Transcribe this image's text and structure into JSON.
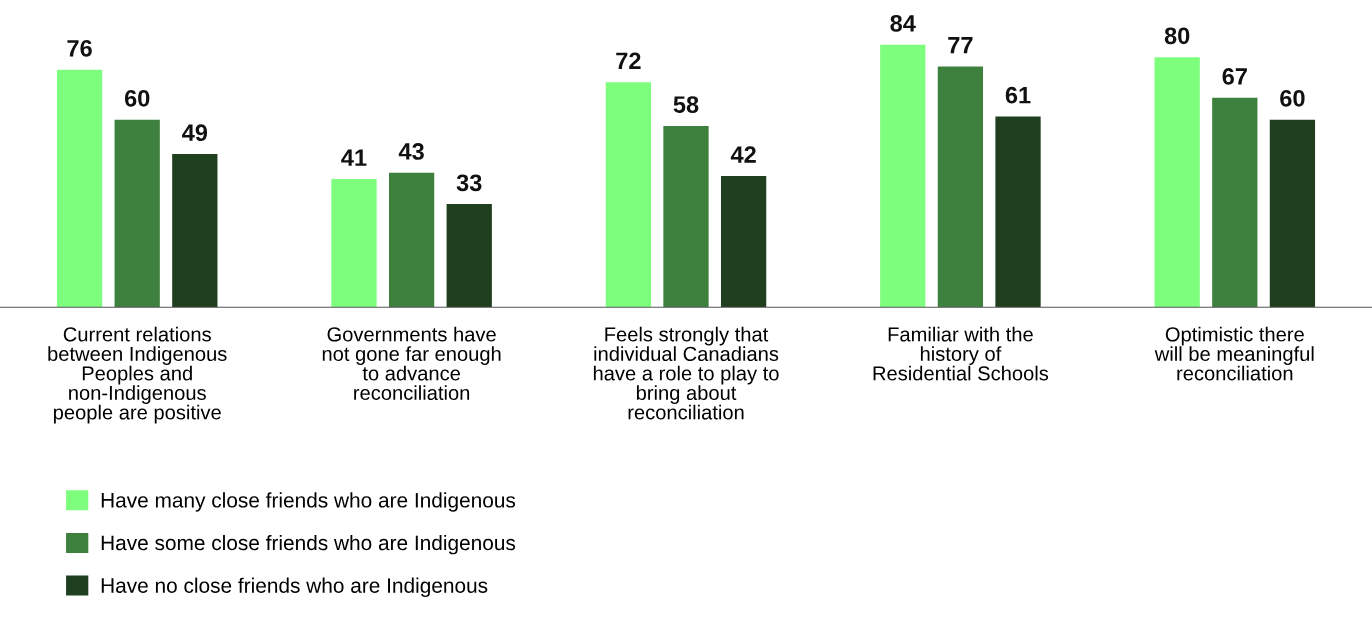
{
  "chart_data": {
    "type": "bar",
    "categories": [
      "Current relations\nbetween Indigenous\nPeoples and\nnon-Indigenous\npeople are positive",
      "Governments have\nnot gone far enough\nto advance\nreconciliation",
      "Feels strongly that\nindividual Canadians\nhave a role to play to\nbring about\nreconciliation",
      "Familiar with the\nhistory of\nResidential Schools",
      "Optimistic there\nwill be meaningful\nreconciliation"
    ],
    "series": [
      {
        "name": "Have many close friends who are Indigenous",
        "color": "#7dff7d",
        "values": [
          76,
          41,
          72,
          84,
          80
        ]
      },
      {
        "name": "Have some close friends who are Indigenous",
        "color": "#3e813e",
        "values": [
          60,
          43,
          58,
          77,
          67
        ]
      },
      {
        "name": "Have no close friends who are Indigenous",
        "color": "#1f3f1f",
        "values": [
          49,
          33,
          42,
          61,
          60
        ]
      }
    ],
    "data_labels": true,
    "legend": "bottom left",
    "grid": false
  }
}
